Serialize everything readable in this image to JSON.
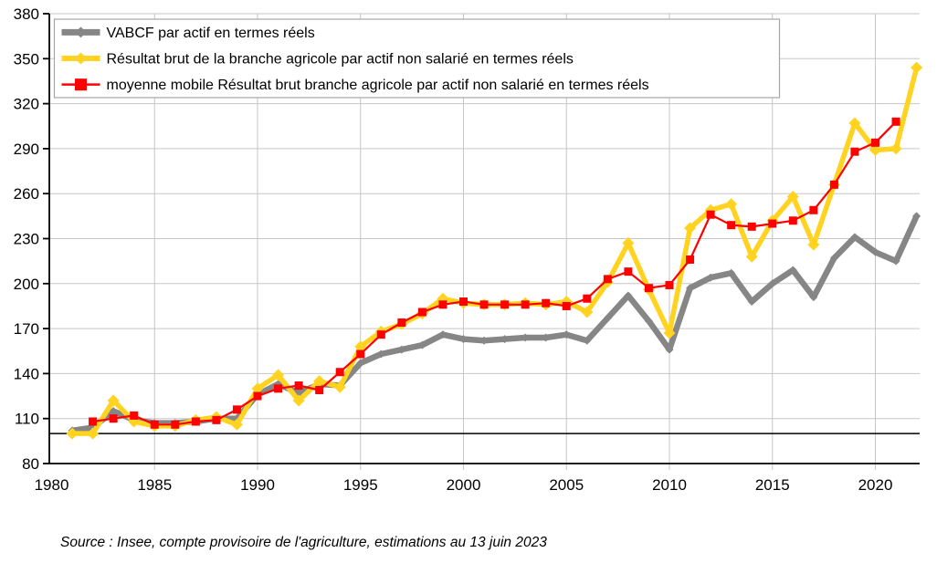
{
  "chart_data": {
    "type": "line",
    "title": "",
    "xlabel": "",
    "ylabel": "",
    "x": [
      1981,
      1982,
      1983,
      1984,
      1985,
      1986,
      1987,
      1988,
      1989,
      1990,
      1991,
      1992,
      1993,
      1994,
      1995,
      1996,
      1997,
      1998,
      1999,
      2000,
      2001,
      2002,
      2003,
      2004,
      2005,
      2006,
      2007,
      2008,
      2009,
      2010,
      2011,
      2012,
      2013,
      2014,
      2015,
      2016,
      2017,
      2018,
      2019,
      2020,
      2021,
      2022
    ],
    "series": [
      {
        "name": "VABCF par actif en termes réels",
        "color": "#868686",
        "marker": "diamond",
        "values": [
          102,
          104,
          115,
          109,
          107,
          107,
          108,
          110,
          110,
          126,
          133,
          127,
          133,
          132,
          147,
          153,
          156,
          159,
          166,
          163,
          162,
          163,
          164,
          164,
          166,
          162,
          177,
          192,
          175,
          156,
          197,
          204,
          207,
          188,
          200,
          209,
          191,
          217,
          231,
          221,
          215,
          245
        ]
      },
      {
        "name": "Résultat brut de la branche agricole par actif non salarié en termes réels",
        "color": "#FFD320",
        "marker": "diamond",
        "values": [
          100,
          100,
          122,
          108,
          105,
          105,
          109,
          111,
          106,
          130,
          139,
          122,
          135,
          131,
          158,
          168,
          173,
          180,
          190,
          187,
          186,
          186,
          187,
          186,
          188,
          181,
          201,
          227,
          196,
          167,
          237,
          249,
          253,
          218,
          242,
          258,
          226,
          266,
          307,
          289,
          290,
          344
        ]
      },
      {
        "name": "moyenne mobile Résultat brut branche agricole par actif non salarié en termes réels",
        "color": "#FF0000",
        "marker": "square",
        "values": [
          null,
          108,
          110,
          112,
          106,
          106,
          108,
          109,
          116,
          125,
          130,
          132,
          129,
          141,
          153,
          166,
          174,
          181,
          186,
          188,
          186,
          186,
          186,
          187,
          185,
          190,
          203,
          208,
          197,
          199,
          216,
          246,
          239,
          238,
          240,
          242,
          249,
          266,
          288,
          294,
          308,
          null
        ]
      }
    ],
    "ylim": [
      80,
      380
    ],
    "y_ticks": [
      80,
      110,
      140,
      170,
      200,
      230,
      260,
      290,
      320,
      350,
      380
    ],
    "x_ticks": [
      1980,
      1985,
      1990,
      1995,
      2000,
      2005,
      2010,
      2015,
      2020
    ],
    "reference_line": 100,
    "grid": true,
    "legend_position": "top-left",
    "grid_color": "#c6c6c6",
    "axis_color": "#000000",
    "legend_border_color": "#a6a6a6"
  },
  "source_note": "Source : Insee, compte provisoire de l'agriculture, estimations au 13 juin 2023"
}
